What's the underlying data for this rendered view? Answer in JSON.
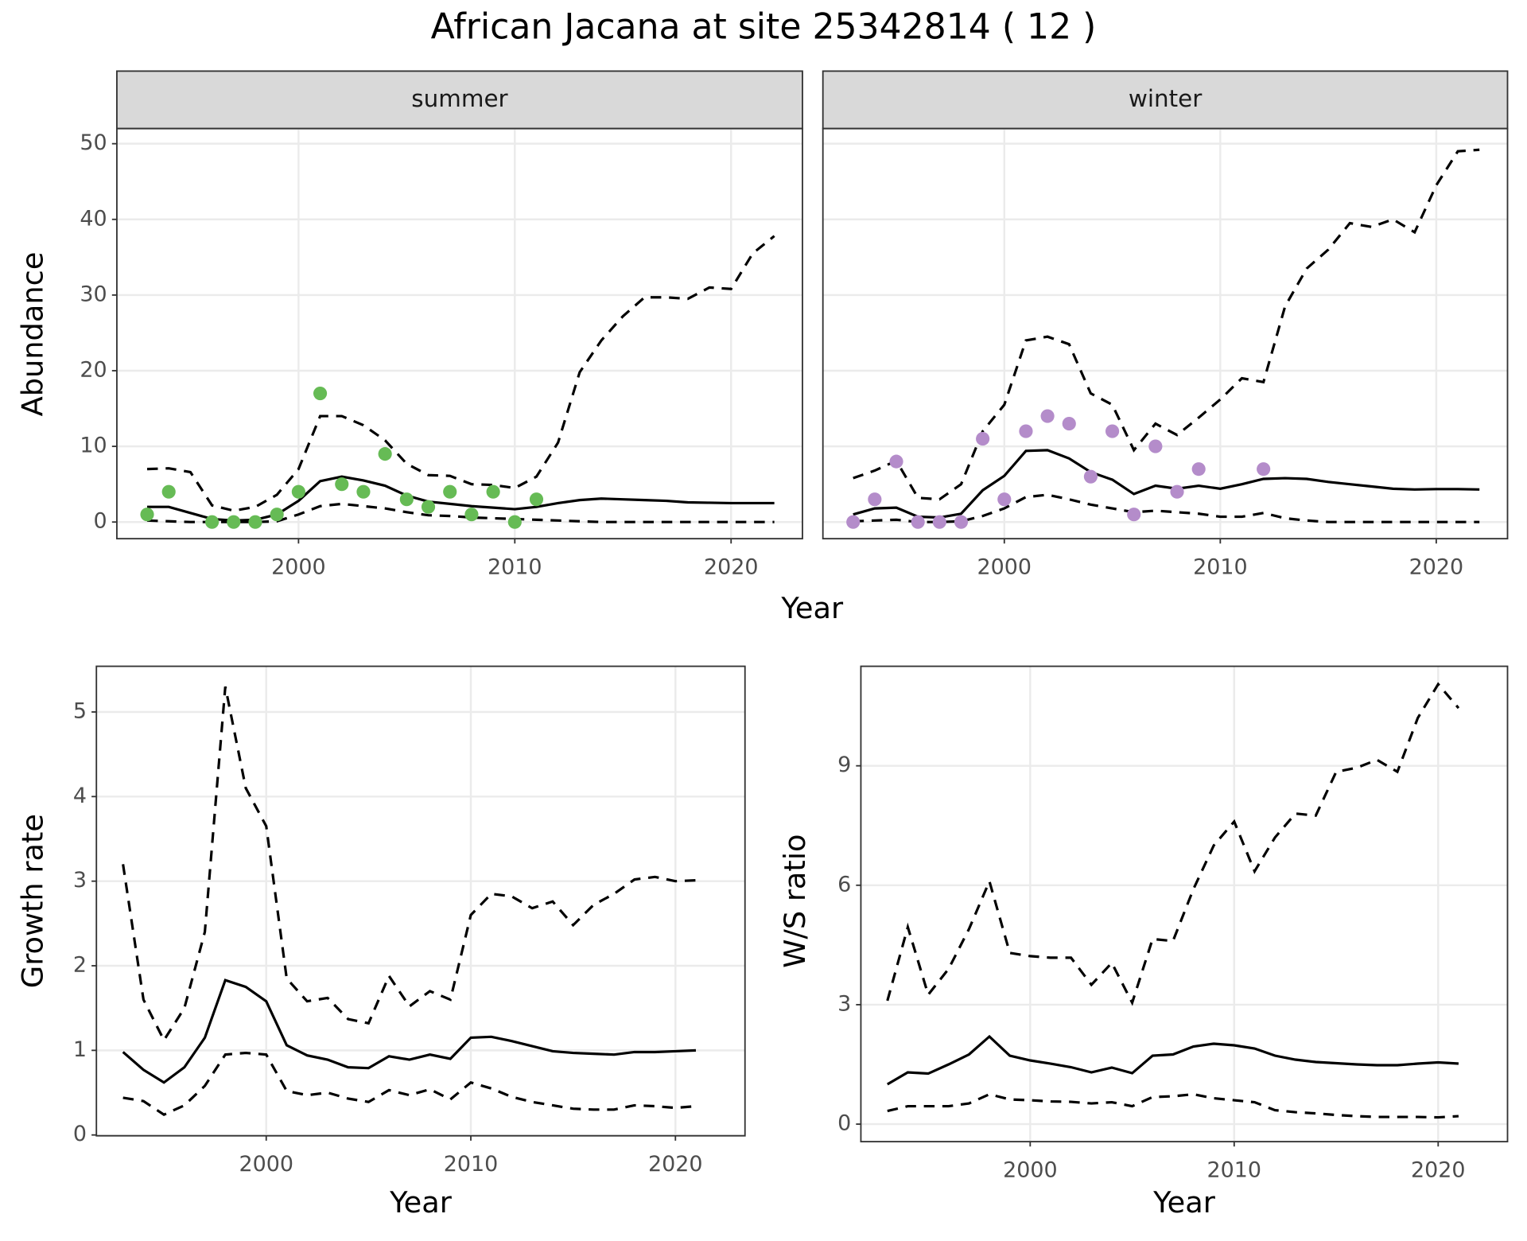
{
  "title": "African Jacana at site 25342814 ( 12 )",
  "chart_data": [
    {
      "type": "line",
      "title": "summer",
      "x_label": "Year",
      "y_label": "Abundance",
      "x": [
        1993,
        1994,
        1995,
        1996,
        1997,
        1998,
        1999,
        2000,
        2001,
        2002,
        2003,
        2004,
        2005,
        2006,
        2007,
        2008,
        2009,
        2010,
        2011,
        2012,
        2013,
        2014,
        2015,
        2016,
        2017,
        2018,
        2019,
        2020,
        2021,
        2022
      ],
      "xlim": [
        1991.6,
        2023.3
      ],
      "ylim": [
        -2.2,
        52
      ],
      "xticks": [
        2000,
        2010,
        2020
      ],
      "yticks": [
        0,
        10,
        20,
        30,
        40,
        50
      ],
      "grid": true,
      "y_tick_labels": true,
      "series": [
        {
          "style": "dashed",
          "color": "#000000",
          "values": [
            7,
            7.1,
            6.6,
            2.2,
            1.5,
            2,
            3.6,
            7,
            14,
            14,
            12.8,
            10.8,
            7.7,
            6.2,
            6.1,
            5,
            4.9,
            4.5,
            6,
            10.5,
            19.8,
            24,
            27.2,
            29.7,
            29.7,
            29.5,
            31,
            30.8,
            35.5,
            37.8
          ]
        },
        {
          "style": "solid",
          "color": "#000000",
          "values": [
            2,
            2,
            1.2,
            0.4,
            0.2,
            0.3,
            1,
            2.8,
            5.4,
            6,
            5.5,
            4.8,
            3.5,
            2.7,
            2.4,
            2.1,
            1.9,
            1.7,
            2,
            2.5,
            2.9,
            3.1,
            3,
            2.9,
            2.8,
            2.6,
            2.55,
            2.5,
            2.5,
            2.5
          ]
        },
        {
          "style": "dashed",
          "color": "#000000",
          "values": [
            0.2,
            0.1,
            0,
            0,
            0,
            0,
            0.1,
            1,
            2.1,
            2.4,
            2.1,
            1.8,
            1.3,
            0.9,
            0.8,
            0.6,
            0.5,
            0.4,
            0.3,
            0.2,
            0.1,
            0,
            0,
            0,
            0,
            0,
            0,
            0,
            0,
            0
          ]
        },
        {
          "style": "points",
          "color": "#66bb55",
          "x": [
            1993,
            1994,
            1996,
            1997,
            1998,
            1999,
            2000,
            2001,
            2002,
            2003,
            2004,
            2005,
            2006,
            2007,
            2008,
            2009,
            2010,
            2011
          ],
          "values": [
            1,
            4,
            0,
            0,
            0,
            1,
            4,
            17,
            5,
            4,
            9,
            3,
            2,
            4,
            1,
            4,
            0,
            3
          ]
        }
      ]
    },
    {
      "type": "line",
      "title": "winter",
      "x": [
        1993,
        1994,
        1995,
        1996,
        1997,
        1998,
        1999,
        2000,
        2001,
        2002,
        2003,
        2004,
        2005,
        2006,
        2007,
        2008,
        2009,
        2010,
        2011,
        2012,
        2013,
        2014,
        2015,
        2016,
        2017,
        2018,
        2019,
        2020,
        2021,
        2022
      ],
      "xlim": [
        1991.6,
        2023.3
      ],
      "ylim": [
        -2.2,
        52
      ],
      "xticks": [
        2000,
        2010,
        2020
      ],
      "yticks": [
        0,
        10,
        20,
        30,
        40,
        50
      ],
      "grid": true,
      "y_tick_labels": false,
      "series": [
        {
          "style": "dashed",
          "color": "#000000",
          "values": [
            5.8,
            6.8,
            8.1,
            3.2,
            3,
            5,
            12,
            15.5,
            24,
            24.5,
            23.5,
            17,
            15.5,
            9.5,
            13,
            11.5,
            13.8,
            16.2,
            19,
            18.5,
            28.5,
            33.5,
            36,
            39.5,
            39,
            40,
            38.3,
            44.5,
            49,
            49.2
          ]
        },
        {
          "style": "solid",
          "color": "#000000",
          "values": [
            1,
            1.8,
            1.9,
            0.7,
            0.6,
            1.1,
            4.2,
            6.1,
            9.4,
            9.5,
            8.4,
            6.6,
            5.6,
            3.7,
            4.8,
            4.4,
            4.8,
            4.4,
            5,
            5.7,
            5.8,
            5.7,
            5.3,
            5,
            4.7,
            4.4,
            4.3,
            4.35,
            4.35,
            4.3
          ]
        },
        {
          "style": "dashed",
          "color": "#000000",
          "values": [
            0.1,
            0.2,
            0.3,
            0,
            0,
            0.1,
            0.8,
            1.8,
            3.3,
            3.6,
            3,
            2.3,
            1.8,
            1.3,
            1.5,
            1.3,
            1.1,
            0.7,
            0.7,
            1.2,
            0.5,
            0.2,
            0,
            0,
            0,
            0,
            0,
            0,
            0,
            0
          ]
        },
        {
          "style": "points",
          "color": "#b48cca",
          "x": [
            1993,
            1994,
            1995,
            1996,
            1997,
            1998,
            1999,
            2000,
            2001,
            2002,
            2003,
            2004,
            2005,
            2006,
            2007,
            2008,
            2009,
            2012
          ],
          "values": [
            0,
            3,
            8,
            0,
            0,
            0,
            11,
            3,
            12,
            14,
            13,
            6,
            12,
            1,
            10,
            4,
            7,
            7
          ]
        }
      ]
    },
    {
      "type": "line",
      "x_label": "Year",
      "y_label": "Growth rate",
      "x": [
        1993,
        1994,
        1995,
        1996,
        1997,
        1998,
        1999,
        2000,
        2001,
        2002,
        2003,
        2004,
        2005,
        2006,
        2007,
        2008,
        2009,
        2010,
        2011,
        2012,
        2013,
        2014,
        2015,
        2016,
        2017,
        2018,
        2019,
        2020,
        2021
      ],
      "xlim": [
        1991.7,
        2023.4
      ],
      "ylim": [
        -0.01,
        5.54
      ],
      "xticks": [
        2000,
        2010,
        2020
      ],
      "yticks": [
        0,
        1,
        2,
        3,
        4,
        5
      ],
      "grid": true,
      "y_tick_labels": true,
      "series": [
        {
          "style": "dashed",
          "color": "#000000",
          "values": [
            3.2,
            1.6,
            1.12,
            1.5,
            2.4,
            5.3,
            4.1,
            3.65,
            1.85,
            1.58,
            1.62,
            1.37,
            1.32,
            1.88,
            1.52,
            1.7,
            1.6,
            2.6,
            2.85,
            2.82,
            2.68,
            2.76,
            2.48,
            2.72,
            2.85,
            3.02,
            3.05,
            3,
            3.01
          ]
        },
        {
          "style": "solid",
          "color": "#000000",
          "values": [
            0.98,
            0.77,
            0.62,
            0.8,
            1.15,
            1.83,
            1.75,
            1.58,
            1.06,
            0.94,
            0.89,
            0.8,
            0.79,
            0.93,
            0.89,
            0.95,
            0.9,
            1.15,
            1.16,
            1.11,
            1.05,
            0.99,
            0.97,
            0.96,
            0.95,
            0.98,
            0.98,
            0.99,
            1
          ]
        },
        {
          "style": "dashed",
          "color": "#000000",
          "values": [
            0.44,
            0.4,
            0.24,
            0.35,
            0.58,
            0.95,
            0.97,
            0.95,
            0.52,
            0.47,
            0.5,
            0.43,
            0.39,
            0.53,
            0.47,
            0.54,
            0.42,
            0.62,
            0.55,
            0.45,
            0.39,
            0.35,
            0.31,
            0.3,
            0.3,
            0.35,
            0.34,
            0.32,
            0.34
          ]
        }
      ]
    },
    {
      "type": "line",
      "x_label": "Year",
      "y_label": "W/S ratio",
      "x": [
        1993,
        1994,
        1995,
        1996,
        1997,
        1998,
        1999,
        2000,
        2001,
        2002,
        2003,
        2004,
        2005,
        2006,
        2007,
        2008,
        2009,
        2010,
        2011,
        2012,
        2013,
        2014,
        2015,
        2016,
        2017,
        2018,
        2019,
        2020,
        2021
      ],
      "xlim": [
        1991.7,
        2023.4
      ],
      "ylim": [
        -0.44,
        11.5
      ],
      "xticks": [
        2000,
        2010,
        2020
      ],
      "yticks": [
        0,
        3,
        6,
        9
      ],
      "grid": true,
      "y_tick_labels": true,
      "series": [
        {
          "style": "dashed",
          "color": "#000000",
          "values": [
            3.1,
            4.95,
            3.25,
            3.9,
            4.9,
            6.1,
            4.3,
            4.22,
            4.18,
            4.18,
            3.5,
            4.05,
            3.05,
            4.65,
            4.6,
            5.9,
            7,
            7.6,
            6.35,
            7.2,
            7.8,
            7.75,
            8.85,
            8.95,
            9.15,
            8.85,
            10.2,
            11.05,
            10.45
          ]
        },
        {
          "style": "solid",
          "color": "#000000",
          "values": [
            1,
            1.3,
            1.27,
            1.5,
            1.75,
            2.2,
            1.72,
            1.6,
            1.52,
            1.43,
            1.3,
            1.42,
            1.28,
            1.72,
            1.75,
            1.95,
            2.02,
            1.98,
            1.9,
            1.72,
            1.62,
            1.56,
            1.53,
            1.5,
            1.48,
            1.48,
            1.52,
            1.55,
            1.52
          ]
        },
        {
          "style": "dashed",
          "color": "#000000",
          "values": [
            0.33,
            0.45,
            0.45,
            0.45,
            0.52,
            0.75,
            0.62,
            0.6,
            0.57,
            0.56,
            0.52,
            0.55,
            0.45,
            0.68,
            0.7,
            0.75,
            0.65,
            0.6,
            0.55,
            0.35,
            0.3,
            0.27,
            0.23,
            0.2,
            0.18,
            0.18,
            0.18,
            0.17,
            0.2
          ]
        }
      ]
    }
  ]
}
